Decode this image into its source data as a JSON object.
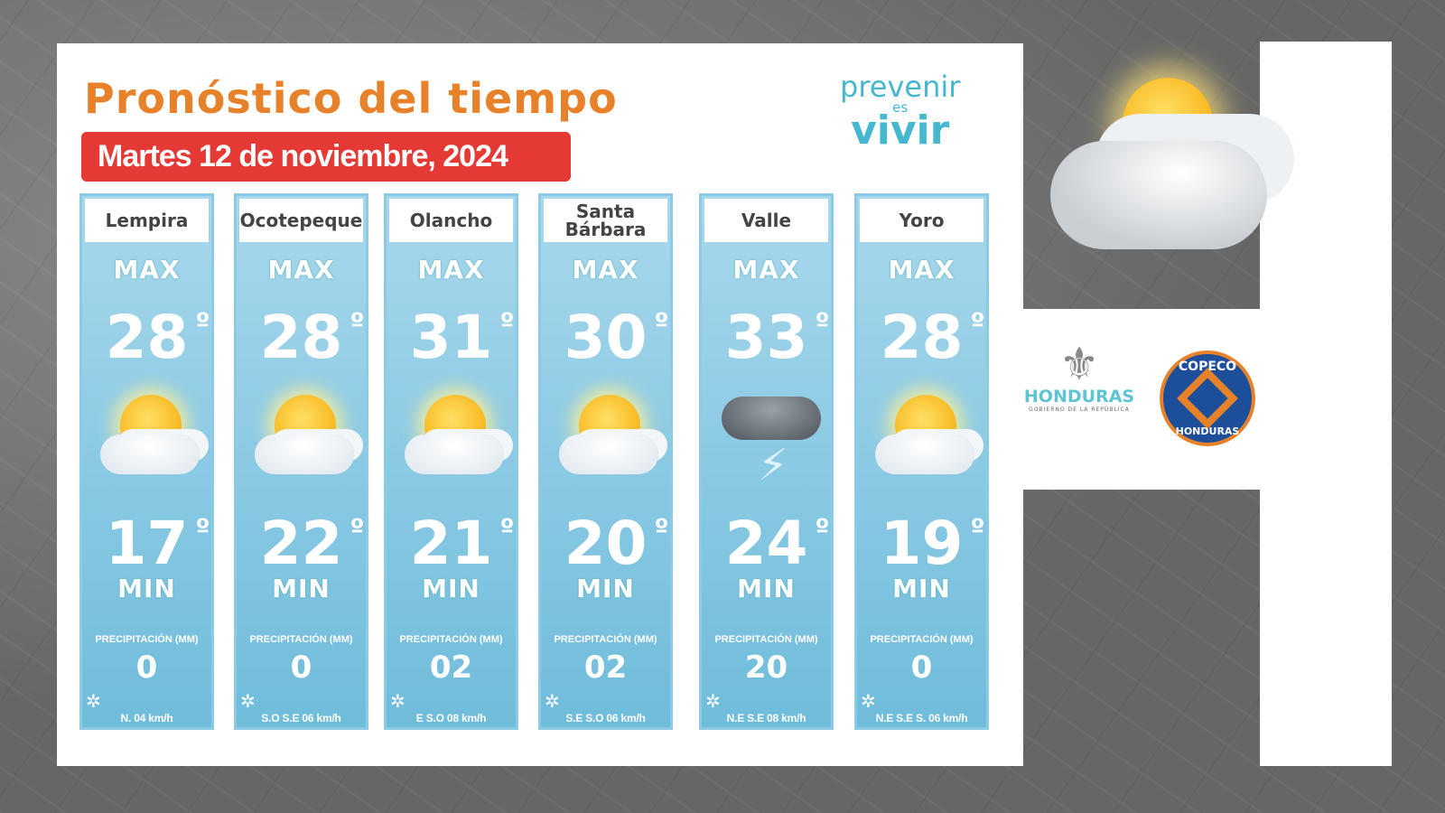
{
  "title": "Pronóstico del tiempo",
  "date": "Martes 12 de noviembre, 2024",
  "brand": {
    "line1": "prevenir",
    "line2": "es",
    "line3": "vivir"
  },
  "labels": {
    "max": "MAX",
    "min": "MIN",
    "precipitation": "PRECIPITACIÓN (MM)",
    "degree": "º"
  },
  "regions": [
    {
      "name": "Lempira",
      "max": "28",
      "min": "17",
      "precip": "0",
      "wind": "N. 04 km/h",
      "icon": "sun-cloud"
    },
    {
      "name": "Ocotepeque",
      "max": "28",
      "min": "22",
      "precip": "0",
      "wind": "S.O S.E 06 km/h",
      "icon": "sun-cloud"
    },
    {
      "name": "Olancho",
      "max": "31",
      "min": "21",
      "precip": "02",
      "wind": "E S.O 08 km/h",
      "icon": "sun-cloud"
    },
    {
      "name": "Santa Bárbara",
      "max": "30",
      "min": "20",
      "precip": "02",
      "wind": "S.E S.O 06 km/h",
      "icon": "sun-cloud"
    },
    {
      "name": "Valle",
      "max": "33",
      "min": "24",
      "precip": "20",
      "wind": "N.E S.E 08 km/h",
      "icon": "thunderstorm"
    },
    {
      "name": "Yoro",
      "max": "28",
      "min": "19",
      "precip": "0",
      "wind": "N.E S.E S. 06 km/h",
      "icon": "sun-cloud"
    }
  ],
  "logos": {
    "honduras": "HONDURAS",
    "honduras_sub": "GOBIERNO DE LA REPÚBLICA",
    "copeco_top": "COPECO",
    "copeco_bottom": "HONDURAS"
  },
  "colors": {
    "title": "#e8822a",
    "date_bg": "#e53935",
    "column": "#7cc4e0",
    "brand": "#45b8d0"
  }
}
